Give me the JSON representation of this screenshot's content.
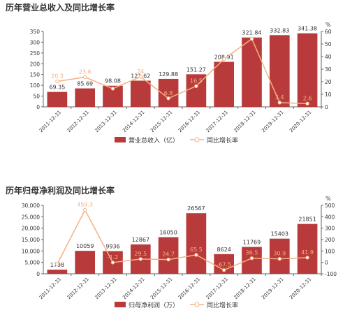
{
  "chart_data": [
    {
      "type": "bar",
      "title": "历年营业总收入及同比增长率",
      "categories": [
        "2011-12-31",
        "2012-12-31",
        "2013-12-31",
        "2014-12-31",
        "2015-12-31",
        "2016-12-31",
        "2017-12-31",
        "2018-12-31",
        "2019-12-31",
        "2020-12-31"
      ],
      "series": [
        {
          "name": "营业总收入（亿）",
          "type": "bar",
          "axis": "left",
          "values": [
            69.35,
            85.69,
            98.08,
            121.62,
            129.88,
            151.27,
            208.91,
            321.84,
            332.83,
            341.38
          ]
        },
        {
          "name": "同比增长率",
          "type": "line",
          "axis": "right",
          "values": [
            20.3,
            23.6,
            14.5,
            24,
            6.8,
            16.5,
            38,
            54.1,
            3.4,
            2.6
          ]
        }
      ],
      "y_left": {
        "ylim": [
          0,
          350
        ],
        "ticks": [
          "0",
          "50",
          "100",
          "150",
          "200",
          "250",
          "300",
          "350"
        ]
      },
      "y_right": {
        "unit": "%",
        "ylim": [
          0,
          60
        ],
        "ticks": [
          "0",
          "10",
          "20",
          "30",
          "40",
          "50",
          "60"
        ]
      },
      "bar_labels": [
        "69.35",
        "85.69",
        "98.08",
        "121.62",
        "129.88",
        "151.27",
        "208.91",
        "321.84",
        "332.83",
        "341.38"
      ],
      "line_labels": [
        "20.3",
        "23.6",
        "",
        "24",
        "6.8",
        "16.5",
        "",
        "",
        "3.4",
        "2.6"
      ],
      "grid": false,
      "legend_position": "bottom"
    },
    {
      "type": "bar",
      "title": "历年归母净利润及同比增长率",
      "categories": [
        "2011-12-31",
        "2012-12-31",
        "2013-12-31",
        "2014-12-31",
        "2015-12-31",
        "2016-12-31",
        "2017-12-31",
        "2018-12-31",
        "2019-12-31",
        "2020-12-31"
      ],
      "series": [
        {
          "name": "归母净利润（万）",
          "type": "bar",
          "axis": "left",
          "values": [
            1798,
            10059,
            9936,
            12867,
            16050,
            26567,
            8624,
            11769,
            15403,
            21851
          ]
        },
        {
          "name": "同比增长率",
          "type": "line",
          "axis": "right",
          "values": [
            -15,
            459.3,
            -1.2,
            29.5,
            24.7,
            65.5,
            -67.5,
            36.5,
            30.9,
            41.9
          ]
        }
      ],
      "y_left": {
        "ylim": [
          0,
          30000
        ],
        "ticks": [
          "0",
          "5,000",
          "10,000",
          "15,000",
          "20,000",
          "25,000",
          "30,000"
        ]
      },
      "y_right": {
        "unit": "%",
        "ylim": [
          -100,
          500
        ],
        "ticks": [
          "-100",
          "0",
          "100",
          "200",
          "300",
          "400",
          "500"
        ]
      },
      "bar_labels": [
        "1798",
        "10059",
        "9936",
        "12867",
        "16050",
        "26567",
        "8624",
        "11769",
        "15403",
        "21851"
      ],
      "line_labels": [
        "",
        "459.3",
        "-1.2",
        "29.5",
        "24.7",
        "65.5",
        "-67.5",
        "36.5",
        "30.9",
        "41.9"
      ],
      "grid": false,
      "legend_position": "bottom"
    }
  ],
  "colors": {
    "bar": "#b93a3a",
    "line": "#f4b184",
    "axis": "#666666",
    "text": "#333333"
  }
}
